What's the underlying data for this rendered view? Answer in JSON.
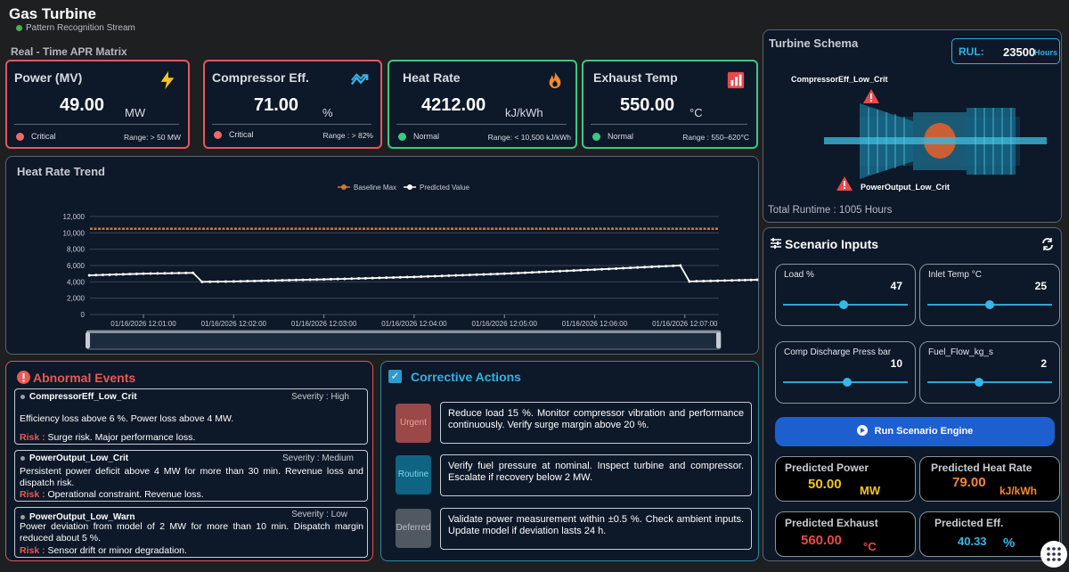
{
  "header": {
    "title": "Gas Turbine",
    "subtitle": "Pattern Recognition Stream",
    "section": "Real - Time APR Matrix"
  },
  "kpis": [
    {
      "title": "Power (MV)",
      "value": "49.00",
      "unit": "MW",
      "status": "Critical",
      "range": "Range: > 50 MW",
      "icon": "lightning-icon",
      "color": "#e8565c"
    },
    {
      "title": "Compressor Eff.",
      "value": "71.00",
      "unit": "%",
      "status": "Critical",
      "range": "Range : > 82%",
      "icon": "trend-icon",
      "color": "#e8565c"
    },
    {
      "title": "Heat Rate",
      "value": "4212.00",
      "unit": "kJ/kWh",
      "status": "Normal",
      "range": "Range: < 10,500 kJ/kWh",
      "icon": "flame-icon",
      "color": "#3bc985"
    },
    {
      "title": "Exhaust Temp",
      "value": "550.00",
      "unit": "°C",
      "status": "Normal",
      "range": "Range : 550–620°C",
      "icon": "bar-chart-icon",
      "color": "#3bc985"
    }
  ],
  "trend": {
    "title": "Heat Rate Trend",
    "legend": [
      "Baseline Max",
      "Predicted Value"
    ]
  },
  "chart_data": {
    "type": "line",
    "title": "Heat Rate Trend",
    "x": [
      "01/16/2026 12:01:00",
      "01/16/2026 12:02:00",
      "01/16/2026 12:03:00",
      "01/16/2026 12:04:00",
      "01/16/2026 12:05:00",
      "01/16/2026 12:06:00",
      "01/16/2026 12:07:00"
    ],
    "y_ticks": [
      "0",
      "2,000",
      "4,000",
      "6,000",
      "8,000",
      "10,000",
      "12,000"
    ],
    "ylim": [
      0,
      12000
    ],
    "series": [
      {
        "name": "Baseline Max",
        "color": "#c87a3c",
        "points": [
          [
            0,
            10500
          ],
          [
            7.3,
            10500
          ]
        ]
      },
      {
        "name": "Predicted Value",
        "color": "#ffffff",
        "points": [
          [
            -0.6,
            4800
          ],
          [
            0,
            5000
          ],
          [
            0.55,
            5100
          ],
          [
            0.65,
            4000
          ],
          [
            1,
            4050
          ],
          [
            2,
            4300
          ],
          [
            3,
            4600
          ],
          [
            4,
            5000
          ],
          [
            5,
            5500
          ],
          [
            5.95,
            6000
          ],
          [
            6.05,
            4050
          ],
          [
            6.6,
            4200
          ],
          [
            6.8,
            4250
          ]
        ]
      }
    ],
    "grid": true,
    "legend": "top"
  },
  "events": {
    "title": "Abnormal Events",
    "items": [
      {
        "name": "CompressorEff_Low_Crit",
        "severity": "Severity :   High",
        "desc": "Efficiency loss above 6 %.  Power loss above 4 MW.",
        "risk_label": "Risk :",
        "risk": "Surge risk. Major performance loss."
      },
      {
        "name": "PowerOutput_Low_Crit",
        "severity": "Severity : Medium",
        "desc": " Persistent power deficit above 4 MW for more than 30 min. Revenue loss and dispatch risk.",
        "risk_label": "Risk :",
        "risk": "Operational constraint. Revenue loss."
      },
      {
        "name": "PowerOutput_Low_Warn",
        "severity": "Severity : Low",
        "desc": " Power deviation from model of 2 MW for more than 10 min. Dispatch margin reduced about 5 %.",
        "risk_label": "Risk :",
        "risk": "Sensor drift or minor degradation."
      }
    ]
  },
  "actions": {
    "title": "Corrective Actions",
    "items": [
      {
        "tag": "Urgent",
        "text": "Reduce load 15 %. Monitor compressor vibration and performance continuously. Verify surge margin above 20 %."
      },
      {
        "tag": "Routine",
        "text": "Verify fuel pressure at nominal. Inspect turbine and compressor. Escalate if recovery below 2 MW."
      },
      {
        "tag": "Deferred",
        "text": "Validate power measurement within ±0.5 %. Check ambient inputs. Update model if deviation lasts 24 h."
      }
    ]
  },
  "schema": {
    "title": "Turbine Schema",
    "rul_label": "RUL:",
    "rul_value": "23500",
    "rul_unit": "Hours",
    "alert1": "CompressorEff_Low_Crit",
    "alert2": "PowerOutput_Low_Crit",
    "runtime_label": "Total Runtime :",
    "runtime_value": "1005",
    "runtime_unit": "Hours"
  },
  "scenario": {
    "title": "Scenario Inputs",
    "inputs": [
      {
        "label": "Load %",
        "value": "47",
        "pos": 0.47
      },
      {
        "label": "Inlet Temp °C",
        "value": "25",
        "pos": 0.5
      },
      {
        "label": "Comp Discharge Press bar",
        "value": "10",
        "pos": 0.5
      },
      {
        "label": "Fuel_Flow_kg_s",
        "value": "2",
        "pos": 0.5
      }
    ],
    "run_label": "Run Scenario Engine",
    "predictions": [
      {
        "label": "Predicted Power",
        "value": "50.00",
        "unit": "MW",
        "color": "#f5c518"
      },
      {
        "label": "Predicted Heat Rate",
        "value": "79.00",
        "unit": "kJ/kWh",
        "color": "#f28a2e"
      },
      {
        "label": "Predicted Exhaust",
        "value": "560.00",
        "unit": "°C",
        "color": "#e84a4a"
      },
      {
        "label": "Predicted Eff.",
        "value": "40.33",
        "unit": "%",
        "color": "#38b6e8"
      }
    ]
  }
}
